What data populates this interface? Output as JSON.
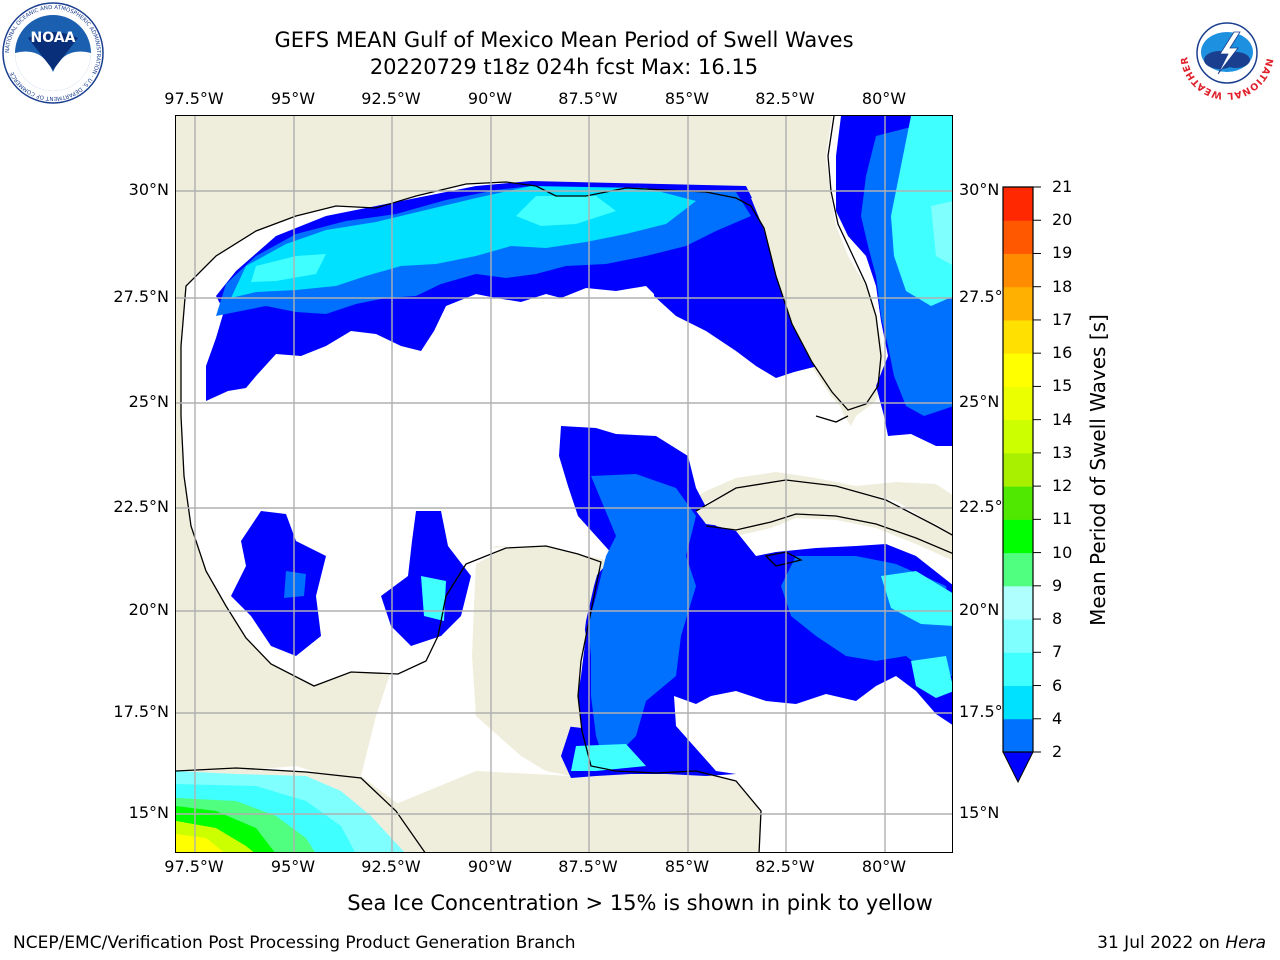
{
  "header": {
    "title_line1": "GEFS MEAN Gulf of Mexico Mean Period of Swell Waves",
    "title_line2": "20220729 t18z 024h fcst   Max: 16.15"
  },
  "map": {
    "lon_labels": [
      "97.5°W",
      "95°W",
      "92.5°W",
      "90°W",
      "87.5°W",
      "85°W",
      "82.5°W",
      "80°W"
    ],
    "lat_labels": [
      "30°N",
      "27.5°N",
      "25°N",
      "22.5°N",
      "20°N",
      "17.5°N",
      "15°N"
    ],
    "colors": {
      "land": "#efeedc",
      "ocean": "#ffffff",
      "grid": "#b0b0b0",
      "coast": "#000000"
    }
  },
  "colorbar": {
    "label": "Mean Period of Swell Waves [s]",
    "ticks": [
      "2",
      "4",
      "6",
      "7",
      "8",
      "9",
      "10",
      "11",
      "12",
      "13",
      "14",
      "15",
      "16",
      "17",
      "18",
      "19",
      "20",
      "21"
    ],
    "under_color": "#0000ff",
    "colors": [
      "#0070ff",
      "#00e0ff",
      "#40ffff",
      "#80ffff",
      "#b0ffff",
      "#50ff80",
      "#00ff00",
      "#50e800",
      "#a8f000",
      "#ccff00",
      "#ecff00",
      "#ffff00",
      "#ffe000",
      "#ffb000",
      "#ff8c00",
      "#ff5800",
      "#ff2800"
    ]
  },
  "footer": {
    "note": "Sea Ice Concentration > 15% is shown in pink to yellow",
    "left": "NCEP/EMC/Verification Post Processing Product Generation Branch",
    "right_date": "31 Jul 2022 on ",
    "right_host": "Hera"
  },
  "logos": {
    "noaa_text": "NOAA",
    "noaa_ring": "NATIONAL OCEANIC AND ATMOSPHERIC ADMINISTRATION · U.S. DEPARTMENT OF COMMERCE",
    "nws_ring": "NATIONAL WEATHER SERVICE"
  }
}
